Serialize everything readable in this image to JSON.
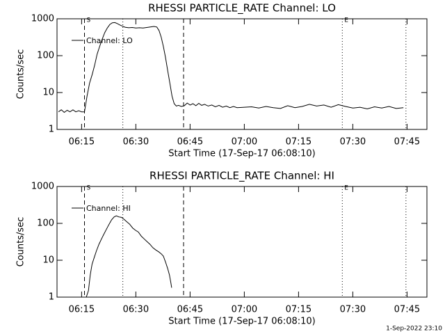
{
  "chart_data": [
    {
      "type": "line",
      "title": "RHESSI PARTICLE_RATE Channel: LO",
      "xlabel": "Start Time (17-Sep-17 06:08:10)",
      "ylabel": "Counts/sec",
      "log_y": true,
      "xlim": [
        8.2,
        110.5
      ],
      "ylim": [
        1,
        1000
      ],
      "xticks": [
        {
          "value": 15,
          "label": "06:15"
        },
        {
          "value": 30,
          "label": "06:30"
        },
        {
          "value": 45,
          "label": "06:45"
        },
        {
          "value": 60,
          "label": "07:00"
        },
        {
          "value": 75,
          "label": "07:15"
        },
        {
          "value": 90,
          "label": "07:30"
        },
        {
          "value": 105,
          "label": "07:45"
        }
      ],
      "yticks": [
        1,
        10,
        100,
        1000
      ],
      "vlines": [
        {
          "x": 15.8,
          "style": "dashed"
        },
        {
          "x": 26.4,
          "style": "dotted"
        },
        {
          "x": 43.2,
          "style": "dashed"
        },
        {
          "x": 87.1,
          "style": "dotted"
        },
        {
          "x": 104.7,
          "style": "dotted"
        }
      ],
      "annotations": [
        {
          "x": 15.8,
          "text": "S"
        },
        {
          "x": 87.1,
          "text": "E"
        }
      ],
      "x": [
        8.6,
        9.4,
        10.2,
        11,
        11.8,
        12.6,
        13.4,
        14.2,
        15,
        15.8,
        16.5,
        17.2,
        17.9,
        18.6,
        19.3,
        20,
        20.7,
        21.4,
        22.1,
        22.8,
        23.5,
        24.2,
        24.9,
        25.6,
        26.3,
        27,
        28,
        29,
        30,
        31,
        32,
        33,
        34,
        35,
        35.8,
        36.4,
        37,
        37.6,
        38.2,
        38.8,
        39.4,
        40,
        40.6,
        41.2,
        41.8,
        42.6,
        43.4,
        44.2,
        45,
        45.8,
        46.6,
        47.4,
        48.2,
        49,
        50,
        51,
        52,
        53,
        54,
        55,
        56,
        57,
        58,
        60,
        62,
        64,
        66,
        68,
        70,
        72,
        74,
        76,
        78,
        80,
        82,
        84,
        86,
        88,
        90,
        92,
        94,
        96,
        98,
        100,
        102,
        104
      ],
      "series": [
        {
          "name": "Channel: LO",
          "color": "#000000",
          "values": [
            3.0,
            3.4,
            2.9,
            3.3,
            3.0,
            3.4,
            3.0,
            3.2,
            3.0,
            3.0,
            8,
            18,
            30,
            55,
            110,
            180,
            280,
            420,
            560,
            700,
            780,
            790,
            740,
            680,
            630,
            590,
            570,
            580,
            560,
            570,
            560,
            580,
            600,
            620,
            600,
            480,
            320,
            180,
            90,
            40,
            18,
            8,
            5,
            4.3,
            4.5,
            4.2,
            4.4,
            5.2,
            4.6,
            5.0,
            4.4,
            5.1,
            4.5,
            4.8,
            4.3,
            4.6,
            4.1,
            4.5,
            4.0,
            4.3,
            3.9,
            4.2,
            3.9,
            4.0,
            4.1,
            3.8,
            4.2,
            3.9,
            3.7,
            4.4,
            3.9,
            4.2,
            4.8,
            4.3,
            4.6,
            4.0,
            4.7,
            4.2,
            3.8,
            4.0,
            3.6,
            4.1,
            3.8,
            4.2,
            3.7,
            3.9
          ]
        }
      ]
    },
    {
      "type": "line",
      "title": "RHESSI PARTICLE_RATE Channel: HI",
      "xlabel": "Start Time (17-Sep-17 06:08:10)",
      "ylabel": "Counts/sec",
      "log_y": true,
      "xlim": [
        8.2,
        110.5
      ],
      "ylim": [
        1,
        1000
      ],
      "xticks": [
        {
          "value": 15,
          "label": "06:15"
        },
        {
          "value": 30,
          "label": "06:30"
        },
        {
          "value": 45,
          "label": "06:45"
        },
        {
          "value": 60,
          "label": "07:00"
        },
        {
          "value": 75,
          "label": "07:15"
        },
        {
          "value": 90,
          "label": "07:30"
        },
        {
          "value": 105,
          "label": "07:45"
        }
      ],
      "yticks": [
        1,
        10,
        100,
        1000
      ],
      "vlines": [
        {
          "x": 15.8,
          "style": "dashed"
        },
        {
          "x": 26.4,
          "style": "dotted"
        },
        {
          "x": 43.2,
          "style": "dashed"
        },
        {
          "x": 87.1,
          "style": "dotted"
        },
        {
          "x": 104.7,
          "style": "dotted"
        }
      ],
      "annotations": [
        {
          "x": 15.8,
          "text": "S"
        },
        {
          "x": 87.1,
          "text": "E"
        }
      ],
      "x": [
        16.3,
        16.9,
        17.4,
        17.9,
        18.5,
        19.1,
        19.8,
        20.5,
        21.2,
        21.9,
        22.6,
        23.3,
        24,
        24.6,
        25.3,
        26,
        26.7,
        27.5,
        28.3,
        29.1,
        29.9,
        30.7,
        31.5,
        32.3,
        33.1,
        33.9,
        34.7,
        35.5,
        36.3,
        37,
        37.6,
        38.2,
        38.8,
        39.3,
        39.7,
        39.9
      ],
      "series": [
        {
          "name": "Channel: HI",
          "color": "#000000",
          "values": [
            1.0,
            1.5,
            4,
            7.8,
            12,
            18,
            27,
            38,
            52,
            70,
            95,
            125,
            150,
            160,
            150,
            145,
            130,
            110,
            95,
            75,
            65,
            58,
            45,
            38,
            32,
            27,
            22,
            19,
            17,
            15,
            13,
            9,
            6,
            4,
            2.4,
            1.8
          ]
        }
      ]
    }
  ],
  "timestamp": "1-Sep-2022 23:10"
}
